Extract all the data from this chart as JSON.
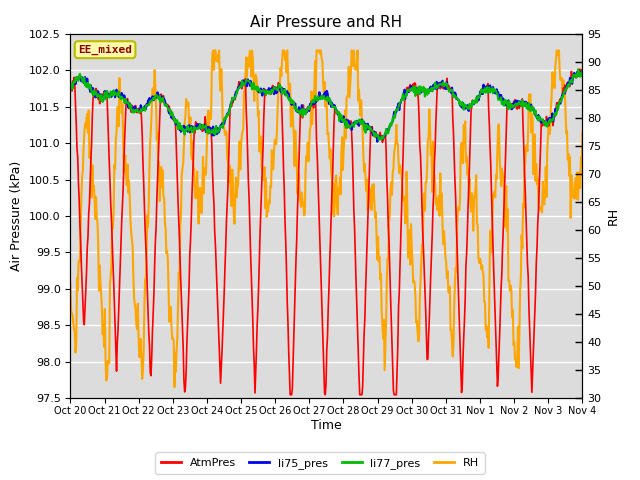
{
  "title": "Air Pressure and RH",
  "xlabel": "Time",
  "ylabel_left": "Air Pressure (kPa)",
  "ylabel_right": "RH",
  "annotation": "EE_mixed",
  "ylim_left": [
    97.5,
    102.5
  ],
  "ylim_right": [
    30,
    95
  ],
  "yticks_left": [
    97.5,
    98.0,
    98.5,
    99.0,
    99.5,
    100.0,
    100.5,
    101.0,
    101.5,
    102.0,
    102.5
  ],
  "yticks_right": [
    30,
    35,
    40,
    45,
    50,
    55,
    60,
    65,
    70,
    75,
    80,
    85,
    90,
    95
  ],
  "xtick_labels": [
    "Oct 20",
    "Oct 21",
    "Oct 22",
    "Oct 23",
    "Oct 24",
    "Oct 25",
    "Oct 26",
    "Oct 27",
    "Oct 28",
    "Oct 29",
    "Oct 30",
    "Oct 31",
    "Nov 1",
    "Nov 2",
    "Nov 3",
    "Nov 4"
  ],
  "colors": {
    "AtmPres": "#FF0000",
    "li75_pres": "#0000EE",
    "li77_pres": "#00BB00",
    "RH": "#FFA500",
    "background": "#DCDCDC",
    "annotation_bg": "#FFFAAA",
    "annotation_border": "#BBBB00",
    "annotation_text": "#880000"
  },
  "linewidths": {
    "AtmPres": 1.2,
    "li75_pres": 1.5,
    "li77_pres": 1.5,
    "RH": 1.5
  },
  "legend_entries": [
    "AtmPres",
    "li75_pres",
    "li77_pres",
    "RH"
  ],
  "grid_color": "#FFFFFF",
  "n_points": 700
}
